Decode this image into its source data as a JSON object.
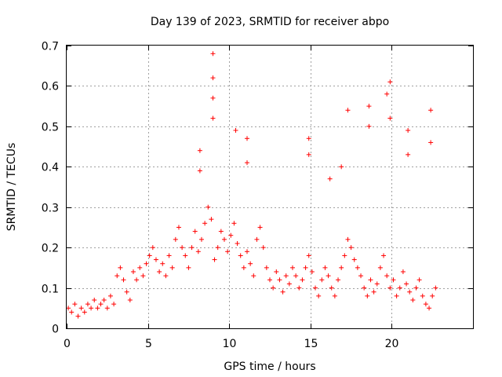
{
  "chart_data": {
    "type": "scatter",
    "title": "Day 139 of 2023, SRMTID for receiver abpo",
    "xlabel": "GPS time / hours",
    "ylabel": "SRMTID / TECUs",
    "xlim": [
      0,
      25.0
    ],
    "ylim": [
      0,
      0.7
    ],
    "xticks": [
      0,
      5,
      10,
      15,
      20
    ],
    "yticks": [
      0,
      0.1,
      0.2,
      0.3,
      0.4,
      0.5,
      0.6,
      0.7
    ],
    "xtick_labels": [
      "0",
      "5",
      "10",
      "15",
      "20"
    ],
    "ytick_labels": [
      "0",
      "0.1",
      "0.2",
      "0.3",
      "0.4",
      "0.5",
      "0.6",
      "0.7"
    ],
    "grid": true,
    "marker": "+",
    "color": "#ff0000",
    "series": [
      {
        "name": "SRMTID",
        "x": [
          0.1,
          0.3,
          0.5,
          0.7,
          0.9,
          1.1,
          1.3,
          1.5,
          1.7,
          1.9,
          2.1,
          2.3,
          2.5,
          2.7,
          2.9,
          3.1,
          3.3,
          3.5,
          3.7,
          3.9,
          4.1,
          4.3,
          4.5,
          4.7,
          4.9,
          5.1,
          5.3,
          5.5,
          5.7,
          5.9,
          6.1,
          6.3,
          6.5,
          6.7,
          6.9,
          7.1,
          7.3,
          7.5,
          7.7,
          7.9,
          8.1,
          8.3,
          8.5,
          8.7,
          8.9,
          9.1,
          9.3,
          9.5,
          9.7,
          9.9,
          10.1,
          10.3,
          10.5,
          10.7,
          10.9,
          11.1,
          11.3,
          11.5,
          11.7,
          11.9,
          12.1,
          12.3,
          12.5,
          12.7,
          12.9,
          13.1,
          13.3,
          13.5,
          13.7,
          13.9,
          14.1,
          14.3,
          14.5,
          14.7,
          14.9,
          15.1,
          15.3,
          15.5,
          15.7,
          15.9,
          16.1,
          16.3,
          16.5,
          16.7,
          16.9,
          17.1,
          17.3,
          17.5,
          17.7,
          17.9,
          18.1,
          18.3,
          18.5,
          18.7,
          18.9,
          19.1,
          19.3,
          19.5,
          19.7,
          19.9,
          20.1,
          20.3,
          20.5,
          20.7,
          20.9,
          21.1,
          21.3,
          21.5,
          21.7,
          21.9,
          22.1,
          22.3,
          22.5,
          22.7,
          9.0,
          9.0,
          9.0,
          9.0,
          8.2,
          8.2,
          10.4,
          11.1,
          11.1,
          14.9,
          14.9,
          17.3,
          18.6,
          18.6,
          19.7,
          19.9,
          19.9,
          21.0,
          21.0,
          22.4,
          22.4,
          16.9,
          16.2
        ],
        "y": [
          0.05,
          0.04,
          0.06,
          0.03,
          0.05,
          0.04,
          0.06,
          0.05,
          0.07,
          0.05,
          0.06,
          0.07,
          0.05,
          0.08,
          0.06,
          0.13,
          0.15,
          0.12,
          0.09,
          0.07,
          0.14,
          0.12,
          0.15,
          0.13,
          0.16,
          0.18,
          0.2,
          0.17,
          0.14,
          0.16,
          0.13,
          0.18,
          0.15,
          0.22,
          0.25,
          0.2,
          0.18,
          0.15,
          0.2,
          0.24,
          0.19,
          0.22,
          0.26,
          0.3,
          0.27,
          0.17,
          0.2,
          0.24,
          0.22,
          0.19,
          0.23,
          0.26,
          0.21,
          0.18,
          0.15,
          0.19,
          0.16,
          0.13,
          0.22,
          0.25,
          0.2,
          0.15,
          0.12,
          0.1,
          0.14,
          0.12,
          0.09,
          0.13,
          0.11,
          0.15,
          0.13,
          0.1,
          0.12,
          0.15,
          0.18,
          0.14,
          0.1,
          0.08,
          0.12,
          0.15,
          0.13,
          0.1,
          0.08,
          0.12,
          0.15,
          0.18,
          0.22,
          0.2,
          0.17,
          0.15,
          0.13,
          0.1,
          0.08,
          0.12,
          0.09,
          0.11,
          0.15,
          0.18,
          0.13,
          0.1,
          0.12,
          0.08,
          0.1,
          0.14,
          0.11,
          0.09,
          0.07,
          0.1,
          0.12,
          0.08,
          0.06,
          0.05,
          0.08,
          0.1,
          0.68,
          0.62,
          0.57,
          0.52,
          0.44,
          0.39,
          0.49,
          0.47,
          0.41,
          0.47,
          0.43,
          0.54,
          0.55,
          0.5,
          0.58,
          0.61,
          0.52,
          0.49,
          0.43,
          0.54,
          0.46,
          0.4,
          0.37
        ]
      }
    ]
  }
}
